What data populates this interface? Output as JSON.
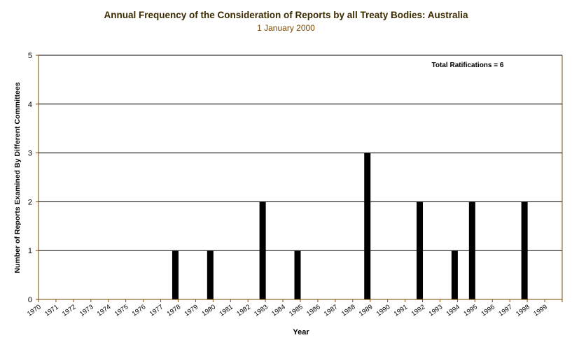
{
  "chart_data": {
    "type": "bar",
    "title": "Annual Frequency of the Consideration of Reports by all Treaty Bodies: Australia",
    "subtitle": "1 January 2000",
    "xlabel": "Year",
    "ylabel": "Number of Reports Examined By Different Committees",
    "ylim": [
      0,
      5
    ],
    "yticks": [
      0,
      1,
      2,
      3,
      4,
      5
    ],
    "grid": true,
    "annotation": "Total Ratifications = 6",
    "categories": [
      "1970",
      "1971",
      "1972",
      "1973",
      "1974",
      "1975",
      "1976",
      "1977",
      "1978",
      "1979",
      "1980",
      "1981",
      "1982",
      "1983",
      "1984",
      "1985",
      "1986",
      "1987",
      "1988",
      "1989",
      "1990",
      "1991",
      "1992",
      "1993",
      "1994",
      "1995",
      "1996",
      "1997",
      "1998",
      "1999"
    ],
    "values": [
      0,
      0,
      0,
      0,
      0,
      0,
      0,
      1,
      0,
      1,
      0,
      0,
      2,
      0,
      1,
      0,
      0,
      0,
      3,
      0,
      0,
      2,
      0,
      1,
      2,
      0,
      0,
      2,
      0,
      0
    ],
    "colors": {
      "bar": "#000000",
      "axis": "#7a4a00",
      "grid": "#000000",
      "title": "#3a2a00"
    }
  }
}
